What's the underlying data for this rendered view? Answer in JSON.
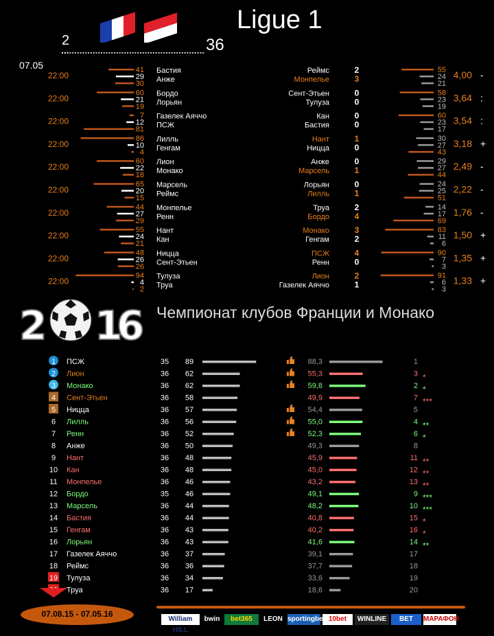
{
  "header": {
    "title": "Ligue 1",
    "round_start": "2",
    "round_end": "36",
    "date": "07.05",
    "flag_fr_icon": "france-flag-icon",
    "flag_mc_icon": "monaco-flag-icon"
  },
  "colors": {
    "orange": "#e8801e",
    "bar_orange": "#c0561a",
    "gray": "#9a9a9a",
    "green": "#7dff7d",
    "red": "#ff6f6f",
    "blue": "#1e90d6",
    "cyan": "#39b7e8"
  },
  "fixtures": [
    {
      "time": "22:00",
      "home": "Бастия",
      "away": "Анже",
      "p_home": 41,
      "p_draw": 29,
      "p_away": 30,
      "res_home": "Реймс",
      "res_away": "Монпелье",
      "sc_home": "2",
      "sc_away": "3",
      "win_side": "away",
      "q_home": 55,
      "q_draw": 24,
      "q_away": 21,
      "odds": "4,00",
      "sign": "-"
    },
    {
      "time": "22:00",
      "home": "Бордо",
      "away": "Лорьян",
      "p_home": 60,
      "p_draw": 21,
      "p_away": 19,
      "res_home": "Сент-Этьен",
      "res_away": "Тулуза",
      "sc_home": "0",
      "sc_away": "0",
      "win_side": "draw",
      "q_home": 58,
      "q_draw": 23,
      "q_away": 19,
      "odds": "3,64",
      "sign": ":"
    },
    {
      "time": "22:00",
      "home": "Газелек Аяччо",
      "away": "ПСЖ",
      "p_home": 7,
      "p_draw": 12,
      "p_away": 81,
      "res_home": "Кан",
      "res_away": "Бастия",
      "sc_home": "0",
      "sc_away": "0",
      "win_side": "draw",
      "q_home": 60,
      "q_draw": 23,
      "q_away": 17,
      "odds": "3,54",
      "sign": ":"
    },
    {
      "time": "22:00",
      "home": "Лилль",
      "away": "Генгам",
      "p_home": 86,
      "p_draw": 10,
      "p_away": 4,
      "res_home": "Нант",
      "res_away": "Ницца",
      "sc_home": "1",
      "sc_away": "0",
      "win_side": "home",
      "q_home": 30,
      "q_draw": 27,
      "q_away": 43,
      "odds": "3,18",
      "sign": "+"
    },
    {
      "time": "22:00",
      "home": "Лион",
      "away": "Монако",
      "p_home": 60,
      "p_draw": 22,
      "p_away": 18,
      "res_home": "Анже",
      "res_away": "Марсель",
      "sc_home": "0",
      "sc_away": "1",
      "win_side": "away",
      "q_home": 29,
      "q_draw": 27,
      "q_away": 44,
      "odds": "2,49",
      "sign": "-"
    },
    {
      "time": "22:00",
      "home": "Марсель",
      "away": "Реймс",
      "p_home": 65,
      "p_draw": 20,
      "p_away": 15,
      "res_home": "Лорьян",
      "res_away": "Лилль",
      "sc_home": "0",
      "sc_away": "1",
      "win_side": "away",
      "q_home": 24,
      "q_draw": 25,
      "q_away": 51,
      "odds": "2,22",
      "sign": "-"
    },
    {
      "time": "22:00",
      "home": "Монпелье",
      "away": "Ренн",
      "p_home": 44,
      "p_draw": 27,
      "p_away": 29,
      "res_home": "Труа",
      "res_away": "Бордо",
      "sc_home": "2",
      "sc_away": "4",
      "win_side": "away",
      "q_home": 14,
      "q_draw": 17,
      "q_away": 69,
      "odds": "1,76",
      "sign": "-"
    },
    {
      "time": "22:00",
      "home": "Нант",
      "away": "Кан",
      "p_home": 55,
      "p_draw": 24,
      "p_away": 21,
      "res_home": "Монако",
      "res_away": "Генгам",
      "sc_home": "3",
      "sc_away": "2",
      "win_side": "home",
      "q_home": 83,
      "q_draw": 11,
      "q_away": 6,
      "odds": "1,50",
      "sign": "+"
    },
    {
      "time": "22:00",
      "home": "Ницца",
      "away": "Сент-Этьен",
      "p_home": 48,
      "p_draw": 26,
      "p_away": 26,
      "res_home": "ПСЖ",
      "res_away": "Ренн",
      "sc_home": "4",
      "sc_away": "0",
      "win_side": "home",
      "q_home": 90,
      "q_draw": 7,
      "q_away": 3,
      "odds": "1,35",
      "sign": "+"
    },
    {
      "time": "22:00",
      "home": "Тулуза",
      "away": "Труа",
      "p_home": 94,
      "p_draw": 4,
      "p_away": 2,
      "res_home": "Лион",
      "res_away": "Газелек Аяччо",
      "sc_home": "2",
      "sc_away": "1",
      "win_side": "home",
      "q_home": 91,
      "q_draw": 6,
      "q_away": 3,
      "odds": "1,33",
      "sign": "+"
    }
  ],
  "section": {
    "year": "2016",
    "title": "Чемпионат клубов Франции и Монако",
    "ball_icon": "soccer-ball-icon"
  },
  "standings": [
    {
      "pos": "1",
      "team": "ПСЖ",
      "games": "35",
      "pts": 89,
      "rating": "88,3",
      "rval": 88.3,
      "prev": "1",
      "trend": "",
      "stars": "",
      "badge": "blue",
      "thumb": true,
      "color": "white"
    },
    {
      "pos": "2",
      "team": "Лион",
      "games": "36",
      "pts": 62,
      "rating": "55,3",
      "rval": 55.3,
      "prev": "3",
      "trend": "down",
      "stars": "*",
      "badge": "blue",
      "thumb": true,
      "color": "orange"
    },
    {
      "pos": "3",
      "team": "Монако",
      "games": "36",
      "pts": 62,
      "rating": "59,8",
      "rval": 59.8,
      "prev": "2",
      "trend": "up",
      "stars": "*",
      "badge": "cyan",
      "thumb": true,
      "color": "green"
    },
    {
      "pos": "4",
      "team": "Сент-Этьен",
      "games": "36",
      "pts": 58,
      "rating": "49,9",
      "rval": 49.9,
      "prev": "7",
      "trend": "down",
      "stars": "***",
      "badge": "brown",
      "thumb": false,
      "color": "orange"
    },
    {
      "pos": "5",
      "team": "Ницца",
      "games": "36",
      "pts": 57,
      "rating": "54,4",
      "rval": 54.4,
      "prev": "5",
      "trend": "",
      "stars": "",
      "badge": "brown",
      "thumb": true,
      "color": "white"
    },
    {
      "pos": "6",
      "team": "Лилль",
      "games": "36",
      "pts": 56,
      "rating": "55,0",
      "rval": 55.0,
      "prev": "4",
      "trend": "up",
      "stars": "**",
      "badge": "",
      "thumb": true,
      "color": "green"
    },
    {
      "pos": "7",
      "team": "Ренн",
      "games": "36",
      "pts": 52,
      "rating": "52,3",
      "rval": 52.3,
      "prev": "6",
      "trend": "up",
      "stars": "*",
      "badge": "",
      "thumb": true,
      "color": "green"
    },
    {
      "pos": "8",
      "team": "Анже",
      "games": "36",
      "pts": 50,
      "rating": "49,3",
      "rval": 49.3,
      "prev": "8",
      "trend": "",
      "stars": "",
      "badge": "",
      "thumb": false,
      "color": "white"
    },
    {
      "pos": "9",
      "team": "Нант",
      "games": "36",
      "pts": 48,
      "rating": "45,9",
      "rval": 45.9,
      "prev": "11",
      "trend": "down",
      "stars": "**",
      "badge": "",
      "thumb": false,
      "color": "red"
    },
    {
      "pos": "10",
      "team": "Кан",
      "games": "36",
      "pts": 48,
      "rating": "45,0",
      "rval": 45.0,
      "prev": "12",
      "trend": "down",
      "stars": "**",
      "badge": "",
      "thumb": false,
      "color": "red"
    },
    {
      "pos": "11",
      "team": "Монпелье",
      "games": "36",
      "pts": 46,
      "rating": "43,2",
      "rval": 43.2,
      "prev": "13",
      "trend": "down",
      "stars": "**",
      "badge": "",
      "thumb": false,
      "color": "red"
    },
    {
      "pos": "12",
      "team": "Бордо",
      "games": "35",
      "pts": 46,
      "rating": "49,1",
      "rval": 49.1,
      "prev": "9",
      "trend": "up",
      "stars": "***",
      "badge": "",
      "thumb": false,
      "color": "green"
    },
    {
      "pos": "13",
      "team": "Марсель",
      "games": "36",
      "pts": 44,
      "rating": "48,2",
      "rval": 48.2,
      "prev": "10",
      "trend": "up",
      "stars": "***",
      "badge": "",
      "thumb": false,
      "color": "green"
    },
    {
      "pos": "14",
      "team": "Бастия",
      "games": "36",
      "pts": 44,
      "rating": "40,8",
      "rval": 40.8,
      "prev": "15",
      "trend": "down",
      "stars": "*",
      "badge": "",
      "thumb": false,
      "color": "red"
    },
    {
      "pos": "15",
      "team": "Генгам",
      "games": "36",
      "pts": 43,
      "rating": "40,2",
      "rval": 40.2,
      "prev": "16",
      "trend": "down",
      "stars": "*",
      "badge": "",
      "thumb": false,
      "color": "red"
    },
    {
      "pos": "16",
      "team": "Лорьян",
      "games": "36",
      "pts": 43,
      "rating": "41,6",
      "rval": 41.6,
      "prev": "14",
      "trend": "up",
      "stars": "**",
      "badge": "",
      "thumb": false,
      "color": "green"
    },
    {
      "pos": "17",
      "team": "Газелек Аяччо",
      "games": "36",
      "pts": 37,
      "rating": "39,1",
      "rval": 39.1,
      "prev": "17",
      "trend": "",
      "stars": "",
      "badge": "",
      "thumb": false,
      "color": "white"
    },
    {
      "pos": "18",
      "team": "Реймс",
      "games": "36",
      "pts": 36,
      "rating": "37,7",
      "rval": 37.7,
      "prev": "18",
      "trend": "",
      "stars": "",
      "badge": "",
      "thumb": false,
      "color": "white"
    },
    {
      "pos": "19",
      "team": "Тулуза",
      "games": "36",
      "pts": 34,
      "rating": "33,6",
      "rval": 33.6,
      "prev": "19",
      "trend": "",
      "stars": "",
      "badge": "red",
      "thumb": false,
      "color": "white"
    },
    {
      "pos": "20",
      "team": "Труа",
      "games": "36",
      "pts": 17,
      "rating": "18,6",
      "rval": 18.6,
      "prev": "20",
      "trend": "",
      "stars": "",
      "badge": "red",
      "thumb": false,
      "color": "white"
    }
  ],
  "footer": {
    "season": "07.08.15 - 07.05.16",
    "bookmakers": [
      "William HILL",
      "bwin",
      "bet365",
      "LEON",
      "sportingbet",
      "10bet",
      "WINLINE",
      "BET",
      "МАРАФОН"
    ]
  },
  "chart_data": {
    "type": "table",
    "title": "Ligue 1",
    "fixtures": {
      "date": "07.05",
      "time": "22:00",
      "matches": [
        [
          "Бастия",
          "Анже",
          41,
          29,
          30
        ],
        [
          "Бордо",
          "Лорьян",
          60,
          21,
          19
        ],
        [
          "Газелек Аяччо",
          "ПСЖ",
          7,
          12,
          81
        ],
        [
          "Лилль",
          "Генгам",
          86,
          10,
          4
        ],
        [
          "Лион",
          "Монако",
          60,
          22,
          18
        ],
        [
          "Марсель",
          "Реймс",
          65,
          20,
          15
        ],
        [
          "Монпелье",
          "Ренн",
          44,
          27,
          29
        ],
        [
          "Нант",
          "Кан",
          55,
          24,
          21
        ],
        [
          "Ницца",
          "Сент-Этьен",
          48,
          26,
          26
        ],
        [
          "Тулуза",
          "Труа",
          94,
          4,
          2
        ]
      ],
      "previous_results": [
        [
          "Реймс",
          "Монпелье",
          "2",
          "3"
        ],
        [
          "Сент-Этьен",
          "Тулуза",
          "0",
          "0"
        ],
        [
          "Кан",
          "Бастия",
          "0",
          "0"
        ],
        [
          "Нант",
          "Ницца",
          "1",
          "0"
        ],
        [
          "Анже",
          "Марсель",
          "0",
          "1"
        ],
        [
          "Лорьян",
          "Лилль",
          "0",
          "1"
        ],
        [
          "Труа",
          "Бордо",
          "2",
          "4"
        ],
        [
          "Монако",
          "Генгам",
          "3",
          "2"
        ],
        [
          "ПСЖ",
          "Ренн",
          "4",
          "0"
        ],
        [
          "Лион",
          "Газелек Аяччо",
          "2",
          "1"
        ]
      ],
      "odds": [
        "4,00",
        "3,64",
        "3,54",
        "3,18",
        "2,49",
        "2,22",
        "1,76",
        "1,50",
        "1,35",
        "1,33"
      ]
    },
    "standings_columns": [
      "pos",
      "team",
      "games",
      "points",
      "rating",
      "prev_pos"
    ],
    "season": "07.08.15 - 07.05.16"
  }
}
